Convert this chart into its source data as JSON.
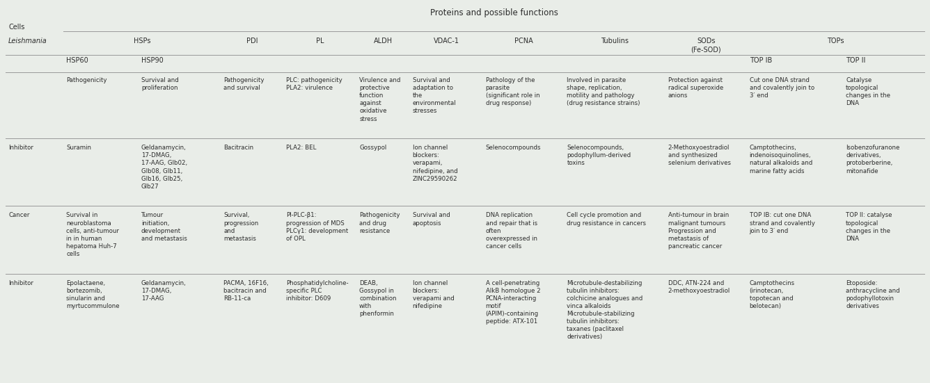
{
  "title": "Proteins and possible functions",
  "bg_color": "#e9ede8",
  "figsize": [
    13.36,
    5.51
  ],
  "dpi": 100,
  "col_widths_pts": [
    62,
    80,
    88,
    67,
    78,
    57,
    78,
    87,
    108,
    87,
    103,
    87
  ],
  "font_size": 6.2,
  "header_font_size": 7.0,
  "title_font_size": 8.5,
  "line_color": "#999999",
  "text_color": "#2b2b2b",
  "level1_headers": [
    {
      "start": 1,
      "end": 2,
      "label": "HSPs"
    },
    {
      "start": 3,
      "end": 3,
      "label": "PDI"
    },
    {
      "start": 4,
      "end": 4,
      "label": "PL"
    },
    {
      "start": 5,
      "end": 5,
      "label": "ALDH"
    },
    {
      "start": 6,
      "end": 6,
      "label": "VDAC-1"
    },
    {
      "start": 7,
      "end": 7,
      "label": "PCNA"
    },
    {
      "start": 8,
      "end": 8,
      "label": "Tubulins"
    },
    {
      "start": 9,
      "end": 9,
      "label": "SODs\n(Fe-SOD)"
    },
    {
      "start": 10,
      "end": 11,
      "label": "TOPs"
    }
  ],
  "level2_headers": [
    {
      "col": 1,
      "label": "HSP60"
    },
    {
      "col": 2,
      "label": "HSP90"
    },
    {
      "col": 10,
      "label": "TOP IB"
    },
    {
      "col": 11,
      "label": "TOP II"
    }
  ],
  "row_labels": [
    "",
    "Inhibitor",
    "Cancer",
    "Inhibitor"
  ],
  "data": [
    [
      "",
      "Pathogenicity",
      "Survival and\nproliferation",
      "Pathogenicity\nand survival",
      "PLC: pathogenicity\nPLA2: virulence",
      "Virulence and\nprotective\nfunction\nagainst\noxidative\nstress",
      "Survival and\nadaptation to\nthe\nenvironmental\nstresses",
      "Pathology of the\nparasite\n(significant role in\ndrug response)",
      "Involved in parasite\nshape, replication,\nmotility and pathology\n(drug resistance strains)",
      "Protection against\nradical superoxide\nanions",
      "Cut one DNA strand\nand covalently join to\n3′ end",
      "Catalyse\ntopological\nchanges in the\nDNA"
    ],
    [
      "Inhibitor",
      "Suramin",
      "Geldanamycin,\n17-DMAG,\n17-AAG, Glb02,\nGlb08, Glb11,\nGlb16, Glb25,\nGlb27",
      "Bacitracin",
      "PLA2: BEL",
      "Gossypol",
      "Ion channel\nblockers:\nverapami,\nnifedipine, and\nZINC29590262",
      "Selenocompounds",
      "Selenocompounds,\npodophyllum-derived\ntoxins",
      "2-Methoxyoestradiol\nand synthesized\nselenium derivatives",
      "Camptothecins,\nindenoisoquinolines,\nnatural alkaloids and\nmarine fatty acids",
      "Isobenzofuranone\nderivatives,\nprotoberberine,\nmitonafide"
    ],
    [
      "Cancer",
      "Survival in\nneuroblastoma\ncells, anti-tumour\nin in human\nhepatoma Huh-7\ncells",
      "Tumour\ninitiation,\ndevelopment\nand metastasis",
      "Survival,\nprogression\nand\nmetastasis",
      "PI-PLC-β1:\nprogression of MDS\nPLCγ1: development\nof OPL",
      "Pathogenicity\nand drug\nresistance",
      "Survival and\napoptosis",
      "DNA replication\nand repair that is\noften\noverexpressed in\ncancer cells",
      "Cell cycle promotion and\ndrug resistance in cancers",
      "Anti-tumour in brain\nmalignant tumours\nProgression and\nmetastasis of\npancreatic cancer",
      "TOP IB: cut one DNA\nstrand and covalently\njoin to 3′ end",
      "TOP II: catalyse\ntopological\nchanges in the\nDNA"
    ],
    [
      "Inhibitor",
      "Epolactaene,\nbortezomib,\nsinularin and\nmyrtucommulone",
      "Geldanamycin,\n17-DMAG,\n17-AAG",
      "PACMA, 16F16,\nbacitracin and\nRB-11-ca",
      "Phosphatidylcholine-\nspecific PLC\ninhibitor: D609",
      "DEAB,\nGossypol in\ncombination\nwith\nphenformin",
      "Ion channel\nblockers:\nverapami and\nnifedipine",
      "A cell-penetrating\nAlkB homologue 2\nPCNA-interacting\nmotif\n(APIM)-containing\npeptide: ATX-101",
      "Microtubule-destabilizing\ntubulin inhibitors:\ncolchicine analogues and\nvinca alkaloids\nMicrotubule-stabilizing\ntubulin inhibitors:\ntaxanes (paclitaxel\nderivatives)",
      "DDC, ATN-224 and\n2-methoxyoestradiol",
      "Camptothecins\n(irinotecan,\ntopotecan and\nbelotecan)",
      "Etoposide:\nanthracycline and\npodophyllotoxin\nderivatives"
    ]
  ]
}
